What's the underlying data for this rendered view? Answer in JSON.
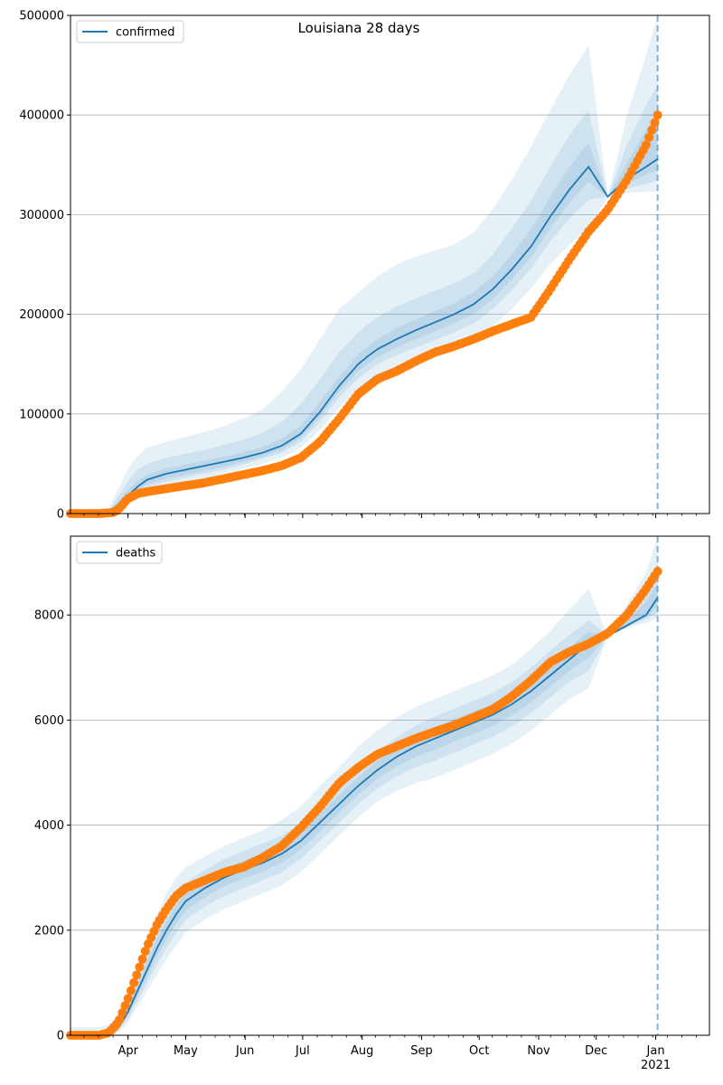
{
  "suptitle": "Louisiana 28 days",
  "x_axis": {
    "month_labels": [
      "Apr",
      "May",
      "Jun",
      "Jul",
      "Aug",
      "Sep",
      "Oct",
      "Nov",
      "Dec",
      "Jan"
    ],
    "month_days": [
      30,
      60,
      91,
      121,
      152,
      183,
      213,
      244,
      274,
      305
    ],
    "year_label": "2021",
    "range_days": [
      0,
      333
    ],
    "forecast_start_day": 306
  },
  "colors": {
    "median": "#1f77b4",
    "band": "#1f77b4",
    "observed": "#ff7f0e",
    "grid": "#b0b0b0",
    "vline": "#1f77b4"
  },
  "chart_data": [
    {
      "type": "line",
      "legend": "confirmed",
      "legend_position": "upper left",
      "grid": "horizontal",
      "ylim": [
        0,
        500000
      ],
      "yticks": [
        0,
        100000,
        200000,
        300000,
        400000,
        500000
      ],
      "ytick_labels": [
        "0",
        "100000",
        "200000",
        "300000",
        "400000",
        "500000"
      ],
      "median": {
        "x": [
          0,
          15,
          20,
          25,
          30,
          35,
          40,
          50,
          60,
          70,
          80,
          90,
          100,
          110,
          120,
          130,
          140,
          150,
          155,
          160,
          170,
          180,
          190,
          200,
          210,
          220,
          230,
          240,
          250,
          260,
          270,
          280,
          290,
          300,
          306
        ],
        "y": [
          0,
          0,
          2000,
          9000,
          18000,
          27000,
          34000,
          40000,
          44000,
          48000,
          52000,
          56000,
          61000,
          68000,
          80000,
          102000,
          128000,
          150000,
          158000,
          165000,
          175000,
          184000,
          192000,
          200000,
          210000,
          225000,
          245000,
          268000,
          298000,
          325000,
          348000,
          318000,
          336000,
          348000,
          356000
        ]
      },
      "bands": [
        {
          "x": [
            0,
            15,
            20,
            25,
            30,
            35,
            40,
            50,
            60,
            70,
            80,
            90,
            100,
            110,
            120,
            130,
            140,
            150,
            155,
            160,
            170,
            180,
            190,
            200,
            210,
            220,
            230,
            240,
            250,
            260,
            270,
            280,
            290,
            300,
            306
          ],
          "lower": [
            0,
            0,
            0,
            2000,
            9000,
            17000,
            22000,
            27000,
            31000,
            35000,
            40000,
            45000,
            50000,
            56000,
            66000,
            84000,
            106000,
            124000,
            131000,
            137000,
            146000,
            154000,
            161000,
            168000,
            176000,
            188000,
            205000,
            226000,
            250000,
            270000,
            286000,
            318000,
            322000,
            323000,
            323000
          ],
          "upper": [
            0,
            0,
            6000,
            25000,
            45000,
            58000,
            66000,
            72000,
            77000,
            82000,
            88000,
            95000,
            105000,
            122000,
            145000,
            175000,
            205000,
            222000,
            230000,
            238000,
            250000,
            258000,
            264000,
            270000,
            282000,
            305000,
            335000,
            368000,
            405000,
            440000,
            470000,
            318000,
            400000,
            460000,
            500000
          ]
        },
        {
          "x": [
            0,
            15,
            20,
            25,
            30,
            35,
            40,
            50,
            60,
            70,
            80,
            90,
            100,
            110,
            120,
            130,
            140,
            150,
            155,
            160,
            170,
            180,
            190,
            200,
            210,
            220,
            230,
            240,
            250,
            260,
            270,
            280,
            290,
            300,
            306
          ],
          "lower": [
            0,
            0,
            0,
            4000,
            12000,
            21000,
            27000,
            32000,
            36000,
            40000,
            44000,
            49000,
            55000,
            61000,
            72000,
            92000,
            116000,
            136000,
            143000,
            150000,
            159000,
            167000,
            174000,
            182000,
            191000,
            205000,
            224000,
            246000,
            273000,
            296000,
            315000,
            318000,
            326000,
            331000,
            334000
          ],
          "upper": [
            0,
            0,
            4000,
            17000,
            33000,
            44000,
            50000,
            56000,
            60000,
            64000,
            69000,
            74000,
            81000,
            92000,
            110000,
            135000,
            162000,
            182000,
            190000,
            197000,
            208000,
            216000,
            224000,
            231000,
            241000,
            260000,
            286000,
            314000,
            348000,
            380000,
            405000,
            318000,
            370000,
            410000,
            430000
          ]
        },
        {
          "x": [
            0,
            15,
            20,
            25,
            30,
            35,
            40,
            50,
            60,
            70,
            80,
            90,
            100,
            110,
            120,
            130,
            140,
            150,
            155,
            160,
            170,
            180,
            190,
            200,
            210,
            220,
            230,
            240,
            250,
            260,
            270,
            280,
            290,
            300,
            306
          ],
          "lower": [
            0,
            0,
            1000,
            6000,
            14000,
            23000,
            30000,
            35000,
            39000,
            43000,
            47000,
            52000,
            57000,
            64000,
            76000,
            97000,
            122000,
            143000,
            150000,
            157000,
            167000,
            175000,
            183000,
            191000,
            200000,
            215000,
            235000,
            257000,
            286000,
            312000,
            333000,
            318000,
            331000,
            340000,
            344000
          ],
          "upper": [
            0,
            0,
            3000,
            12000,
            24000,
            33000,
            39000,
            45000,
            49000,
            53000,
            57000,
            61000,
            67000,
            75000,
            88000,
            112000,
            137000,
            160000,
            168000,
            175000,
            186000,
            195000,
            203000,
            211000,
            222000,
            238000,
            260000,
            285000,
            318000,
            348000,
            372000,
            318000,
            352000,
            385000,
            400000
          ]
        }
      ],
      "observed": {
        "x": [
          0,
          15,
          22,
          24,
          26,
          28,
          30,
          35,
          40,
          50,
          60,
          70,
          80,
          90,
          100,
          110,
          120,
          130,
          140,
          150,
          160,
          170,
          180,
          190,
          200,
          210,
          220,
          230,
          240,
          250,
          260,
          270,
          280,
          290,
          300,
          306
        ],
        "y": [
          0,
          0,
          1000,
          3000,
          6000,
          11000,
          15000,
          20000,
          22000,
          25000,
          28000,
          31000,
          35000,
          39000,
          43000,
          48000,
          56000,
          72000,
          95000,
          120000,
          135000,
          143000,
          153000,
          162000,
          168000,
          175000,
          183000,
          190000,
          197000,
          225000,
          255000,
          283000,
          305000,
          335000,
          370000,
          400000
        ]
      },
      "forecast_start_label_hidden": true
    },
    {
      "type": "line",
      "legend": "deaths",
      "legend_position": "upper left",
      "grid": "horizontal",
      "ylim": [
        0,
        9500
      ],
      "yticks": [
        0,
        2000,
        4000,
        6000,
        8000
      ],
      "ytick_labels": [
        "0",
        "2000",
        "4000",
        "6000",
        "8000"
      ],
      "median": {
        "x": [
          0,
          15,
          20,
          25,
          30,
          35,
          40,
          45,
          50,
          55,
          60,
          70,
          80,
          90,
          100,
          110,
          120,
          130,
          140,
          150,
          160,
          170,
          180,
          190,
          200,
          210,
          220,
          230,
          240,
          250,
          260,
          270,
          280,
          290,
          300,
          306
        ],
        "y": [
          0,
          0,
          30,
          150,
          450,
          850,
          1250,
          1650,
          2000,
          2300,
          2550,
          2800,
          3000,
          3150,
          3280,
          3450,
          3700,
          4050,
          4400,
          4750,
          5050,
          5300,
          5500,
          5650,
          5800,
          5950,
          6100,
          6300,
          6550,
          6850,
          7150,
          7450,
          7600,
          7800,
          8000,
          8330
        ]
      },
      "bands": [
        {
          "x": [
            0,
            15,
            20,
            25,
            30,
            35,
            40,
            45,
            50,
            55,
            60,
            70,
            80,
            90,
            100,
            110,
            120,
            130,
            140,
            150,
            160,
            170,
            180,
            190,
            200,
            210,
            220,
            230,
            240,
            250,
            260,
            270,
            280,
            290,
            300,
            306
          ],
          "lower": [
            0,
            0,
            0,
            50,
            250,
            550,
            850,
            1150,
            1450,
            1700,
            1950,
            2200,
            2400,
            2550,
            2700,
            2850,
            3100,
            3450,
            3800,
            4150,
            4450,
            4650,
            4800,
            4900,
            5050,
            5200,
            5350,
            5550,
            5800,
            6100,
            6400,
            6600,
            7600,
            7750,
            7850,
            7950
          ],
          "upper": [
            150,
            150,
            200,
            400,
            800,
            1300,
            1800,
            2300,
            2700,
            3000,
            3200,
            3400,
            3600,
            3750,
            3900,
            4100,
            4350,
            4750,
            5100,
            5500,
            5800,
            6050,
            6250,
            6400,
            6550,
            6700,
            6850,
            7050,
            7350,
            7700,
            8100,
            8500,
            7600,
            8200,
            8800,
            9500
          ]
        },
        {
          "x": [
            0,
            15,
            20,
            25,
            30,
            35,
            40,
            45,
            50,
            55,
            60,
            70,
            80,
            90,
            100,
            110,
            120,
            130,
            140,
            150,
            160,
            170,
            180,
            190,
            200,
            210,
            220,
            230,
            240,
            250,
            260,
            270,
            280,
            290,
            300,
            306
          ],
          "lower": [
            0,
            0,
            0,
            80,
            320,
            650,
            1000,
            1350,
            1650,
            1950,
            2200,
            2450,
            2650,
            2800,
            2950,
            3100,
            3350,
            3700,
            4050,
            4400,
            4700,
            4930,
            5100,
            5230,
            5380,
            5530,
            5680,
            5880,
            6130,
            6430,
            6730,
            6930,
            7600,
            7770,
            7920,
            8060
          ],
          "upper": [
            80,
            80,
            120,
            280,
            650,
            1100,
            1550,
            2000,
            2350,
            2650,
            2900,
            3150,
            3350,
            3500,
            3650,
            3800,
            4050,
            4400,
            4750,
            5100,
            5400,
            5670,
            5900,
            6070,
            6220,
            6370,
            6520,
            6720,
            7000,
            7320,
            7620,
            7900,
            7600,
            8050,
            8500,
            9000
          ]
        },
        {
          "x": [
            0,
            15,
            20,
            25,
            30,
            35,
            40,
            45,
            50,
            55,
            60,
            70,
            80,
            90,
            100,
            110,
            120,
            130,
            140,
            150,
            160,
            170,
            180,
            190,
            200,
            210,
            220,
            230,
            240,
            250,
            260,
            270,
            280,
            290,
            300,
            306
          ],
          "lower": [
            0,
            0,
            10,
            110,
            380,
            750,
            1120,
            1500,
            1830,
            2120,
            2380,
            2630,
            2830,
            2980,
            3110,
            3280,
            3530,
            3880,
            4230,
            4580,
            4880,
            5120,
            5300,
            5440,
            5590,
            5740,
            5890,
            6090,
            6340,
            6640,
            6940,
            7190,
            7600,
            7790,
            7960,
            8180
          ],
          "upper": [
            40,
            40,
            60,
            200,
            550,
            970,
            1400,
            1820,
            2170,
            2470,
            2720,
            2970,
            3170,
            3320,
            3450,
            3620,
            3870,
            4220,
            4570,
            4920,
            5220,
            5480,
            5700,
            5860,
            6010,
            6160,
            6310,
            6510,
            6770,
            7070,
            7370,
            7680,
            7600,
            7900,
            8250,
            8600
          ]
        }
      ],
      "observed": {
        "x": [
          0,
          15,
          20,
          25,
          30,
          35,
          40,
          45,
          50,
          55,
          60,
          70,
          80,
          90,
          100,
          110,
          120,
          130,
          140,
          150,
          160,
          170,
          180,
          190,
          200,
          210,
          220,
          230,
          240,
          250,
          260,
          270,
          280,
          290,
          300,
          306
        ],
        "y": [
          0,
          0,
          50,
          250,
          700,
          1200,
          1700,
          2100,
          2400,
          2650,
          2800,
          2950,
          3100,
          3200,
          3380,
          3600,
          3950,
          4350,
          4800,
          5100,
          5350,
          5500,
          5650,
          5780,
          5900,
          6050,
          6200,
          6450,
          6750,
          7100,
          7300,
          7450,
          7650,
          8000,
          8500,
          8830
        ]
      }
    }
  ]
}
